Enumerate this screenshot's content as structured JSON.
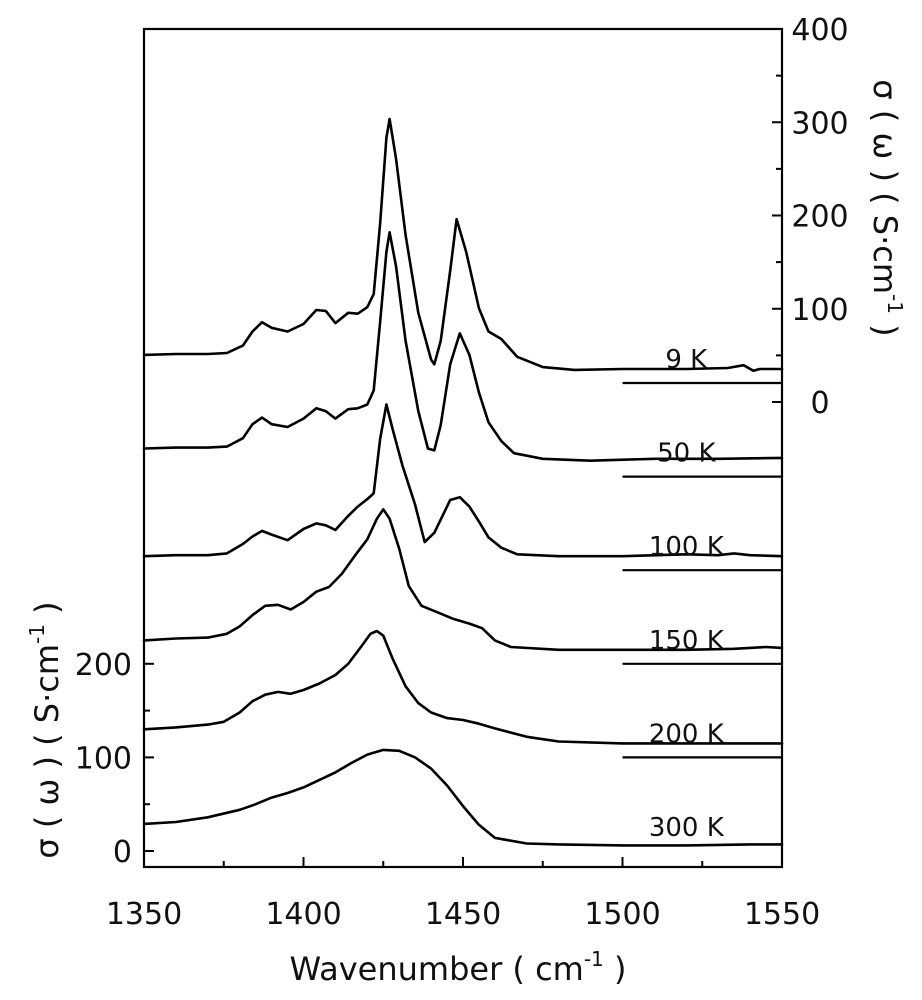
{
  "chart_data": {
    "type": "line",
    "x_axis": {
      "label": "Wavenumber ( cm",
      "label_sup": "-1",
      "label_end": " )",
      "range": [
        1350,
        1550
      ],
      "ticks": [
        1350,
        1400,
        1450,
        1500,
        1550
      ],
      "tick_labels": [
        "1350",
        "1400",
        "1450",
        "1500",
        "1550"
      ]
    },
    "left_axis": {
      "label": "σ ( ω ) ( S·cm",
      "label_sup": "-1",
      "label_end": " )",
      "range": [
        0,
        300
      ],
      "ticks": [
        0,
        100,
        200
      ],
      "tick_labels": [
        "0",
        "100",
        "200"
      ]
    },
    "right_axis": {
      "label": "σ ( ω ) ( S·cm",
      "label_sup": "-1",
      "label_end": " )",
      "range": [
        0,
        400
      ],
      "ticks": [
        0,
        100,
        200,
        300,
        400
      ],
      "tick_labels": [
        "0",
        "100",
        "200",
        "300",
        "400"
      ]
    },
    "stacked_offset": 100,
    "series": [
      {
        "name": "9 K",
        "offset": 500,
        "points": [
          [
            1350,
            30
          ],
          [
            1360,
            31
          ],
          [
            1370,
            31
          ],
          [
            1376,
            32
          ],
          [
            1381,
            40
          ],
          [
            1384,
            55
          ],
          [
            1387,
            65
          ],
          [
            1390,
            59
          ],
          [
            1395,
            55
          ],
          [
            1400,
            63
          ],
          [
            1404,
            78
          ],
          [
            1407,
            77
          ],
          [
            1410,
            64
          ],
          [
            1414,
            75
          ],
          [
            1417,
            74
          ],
          [
            1420,
            81
          ],
          [
            1422,
            95
          ],
          [
            1424,
            170
          ],
          [
            1426,
            262
          ],
          [
            1427,
            282
          ],
          [
            1429,
            240
          ],
          [
            1432,
            158
          ],
          [
            1436,
            75
          ],
          [
            1440,
            25
          ],
          [
            1441,
            20
          ],
          [
            1443,
            45
          ],
          [
            1446,
            120
          ],
          [
            1448,
            175
          ],
          [
            1451,
            140
          ],
          [
            1455,
            80
          ],
          [
            1458,
            55
          ],
          [
            1462,
            47
          ],
          [
            1467,
            28
          ],
          [
            1475,
            17
          ],
          [
            1485,
            14
          ],
          [
            1500,
            15
          ],
          [
            1520,
            15
          ],
          [
            1533,
            16
          ],
          [
            1538,
            19
          ],
          [
            1541,
            13
          ],
          [
            1543,
            15
          ],
          [
            1550,
            15
          ]
        ]
      },
      {
        "name": "50 K",
        "offset": 400,
        "points": [
          [
            1350,
            30
          ],
          [
            1360,
            31
          ],
          [
            1370,
            31
          ],
          [
            1376,
            32
          ],
          [
            1381,
            41
          ],
          [
            1384,
            56
          ],
          [
            1387,
            63
          ],
          [
            1390,
            56
          ],
          [
            1395,
            53
          ],
          [
            1400,
            62
          ],
          [
            1404,
            73
          ],
          [
            1407,
            70
          ],
          [
            1410,
            62
          ],
          [
            1414,
            72
          ],
          [
            1417,
            73
          ],
          [
            1420,
            77
          ],
          [
            1422,
            92
          ],
          [
            1424,
            165
          ],
          [
            1426,
            240
          ],
          [
            1427,
            261
          ],
          [
            1429,
            225
          ],
          [
            1432,
            145
          ],
          [
            1436,
            70
          ],
          [
            1439,
            30
          ],
          [
            1441,
            28
          ],
          [
            1443,
            55
          ],
          [
            1446,
            120
          ],
          [
            1449,
            153
          ],
          [
            1452,
            130
          ],
          [
            1455,
            90
          ],
          [
            1458,
            58
          ],
          [
            1462,
            38
          ],
          [
            1466,
            25
          ],
          [
            1475,
            19
          ],
          [
            1490,
            17
          ],
          [
            1510,
            19
          ],
          [
            1530,
            19
          ],
          [
            1550,
            20
          ]
        ]
      },
      {
        "name": "100 K",
        "offset": 300,
        "points": [
          [
            1350,
            15
          ],
          [
            1360,
            16
          ],
          [
            1370,
            16
          ],
          [
            1376,
            18
          ],
          [
            1381,
            28
          ],
          [
            1384,
            36
          ],
          [
            1387,
            42
          ],
          [
            1390,
            38
          ],
          [
            1395,
            32
          ],
          [
            1400,
            44
          ],
          [
            1404,
            50
          ],
          [
            1407,
            48
          ],
          [
            1410,
            43
          ],
          [
            1414,
            58
          ],
          [
            1417,
            68
          ],
          [
            1420,
            76
          ],
          [
            1422,
            82
          ],
          [
            1424,
            140
          ],
          [
            1426,
            177
          ],
          [
            1428,
            150
          ],
          [
            1431,
            112
          ],
          [
            1435,
            70
          ],
          [
            1438,
            30
          ],
          [
            1441,
            40
          ],
          [
            1446,
            75
          ],
          [
            1449,
            78
          ],
          [
            1452,
            68
          ],
          [
            1455,
            52
          ],
          [
            1458,
            35
          ],
          [
            1462,
            24
          ],
          [
            1467,
            17
          ],
          [
            1480,
            15
          ],
          [
            1500,
            15
          ],
          [
            1520,
            17
          ],
          [
            1530,
            16
          ],
          [
            1535,
            18
          ],
          [
            1540,
            16
          ],
          [
            1550,
            15
          ]
        ]
      },
      {
        "name": "150 K",
        "offset": 200,
        "points": [
          [
            1350,
            25
          ],
          [
            1360,
            27
          ],
          [
            1370,
            28
          ],
          [
            1376,
            32
          ],
          [
            1380,
            40
          ],
          [
            1384,
            52
          ],
          [
            1388,
            62
          ],
          [
            1392,
            63
          ],
          [
            1396,
            58
          ],
          [
            1400,
            66
          ],
          [
            1404,
            77
          ],
          [
            1408,
            82
          ],
          [
            1412,
            96
          ],
          [
            1416,
            115
          ],
          [
            1420,
            133
          ],
          [
            1423,
            155
          ],
          [
            1425,
            165
          ],
          [
            1427,
            155
          ],
          [
            1430,
            123
          ],
          [
            1433,
            83
          ],
          [
            1437,
            62
          ],
          [
            1442,
            55
          ],
          [
            1447,
            48
          ],
          [
            1452,
            43
          ],
          [
            1456,
            38
          ],
          [
            1460,
            25
          ],
          [
            1465,
            18
          ],
          [
            1480,
            15
          ],
          [
            1500,
            15
          ],
          [
            1520,
            15
          ],
          [
            1535,
            16
          ],
          [
            1545,
            18
          ],
          [
            1550,
            17
          ]
        ]
      },
      {
        "name": "200 K",
        "offset": 100,
        "points": [
          [
            1350,
            30
          ],
          [
            1360,
            32
          ],
          [
            1370,
            35
          ],
          [
            1375,
            38
          ],
          [
            1380,
            48
          ],
          [
            1384,
            60
          ],
          [
            1388,
            67
          ],
          [
            1392,
            70
          ],
          [
            1396,
            68
          ],
          [
            1400,
            72
          ],
          [
            1405,
            79
          ],
          [
            1410,
            88
          ],
          [
            1414,
            100
          ],
          [
            1418,
            118
          ],
          [
            1421,
            132
          ],
          [
            1423,
            135
          ],
          [
            1425,
            130
          ],
          [
            1428,
            105
          ],
          [
            1432,
            76
          ],
          [
            1436,
            58
          ],
          [
            1440,
            48
          ],
          [
            1445,
            42
          ],
          [
            1450,
            40
          ],
          [
            1455,
            36
          ],
          [
            1460,
            31
          ],
          [
            1470,
            22
          ],
          [
            1480,
            17
          ],
          [
            1500,
            15
          ],
          [
            1520,
            15
          ],
          [
            1550,
            15
          ]
        ]
      },
      {
        "name": "300 K",
        "offset": 0,
        "points": [
          [
            1350,
            29
          ],
          [
            1360,
            31
          ],
          [
            1370,
            36
          ],
          [
            1380,
            44
          ],
          [
            1385,
            50
          ],
          [
            1390,
            57
          ],
          [
            1395,
            62
          ],
          [
            1400,
            68
          ],
          [
            1405,
            76
          ],
          [
            1410,
            84
          ],
          [
            1415,
            94
          ],
          [
            1420,
            103
          ],
          [
            1425,
            108
          ],
          [
            1430,
            107
          ],
          [
            1435,
            100
          ],
          [
            1440,
            88
          ],
          [
            1445,
            70
          ],
          [
            1450,
            48
          ],
          [
            1455,
            28
          ],
          [
            1460,
            14
          ],
          [
            1470,
            8
          ],
          [
            1480,
            7
          ],
          [
            1500,
            6
          ],
          [
            1520,
            6
          ],
          [
            1540,
            7
          ],
          [
            1550,
            7
          ]
        ]
      }
    ]
  }
}
